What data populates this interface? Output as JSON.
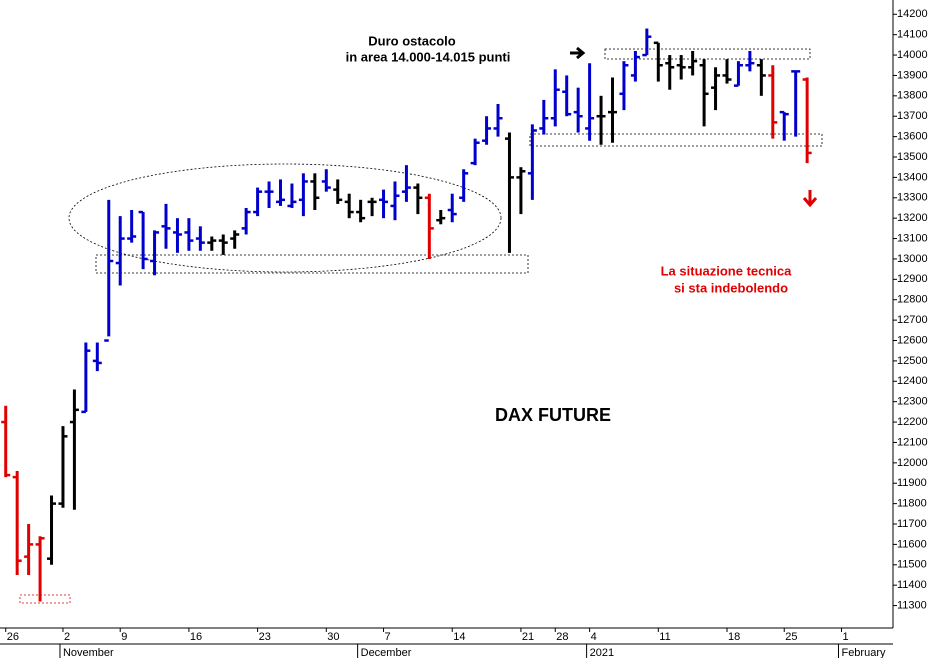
{
  "chart_data": {
    "type": "ohlc",
    "title": "DAX FUTURE",
    "annotations": [
      "Duro ostacolo",
      "in area 14.000-14.015 punti",
      "La situazione tecnica",
      "si sta indebolendo"
    ],
    "open": [
      12200,
      11930,
      11540,
      11600,
      11530,
      11800,
      12200,
      12250,
      12500,
      12600,
      12980,
      13100,
      13230,
      12990,
      13160,
      13130,
      13130,
      13100,
      13080,
      13090,
      13100,
      13150,
      13230,
      13330,
      13280,
      13260,
      13290,
      13380,
      13380,
      13340,
      13280,
      13230,
      13280,
      13290,
      13260,
      13330,
      13350,
      13300,
      13190,
      13240,
      13300,
      13470,
      13580,
      13640,
      13590,
      13400,
      13420,
      13640,
      13690,
      13820,
      13720,
      13640,
      13700,
      13720,
      13810,
      13900,
      14000,
      14060,
      13960,
      13950,
      13940,
      13950,
      13840,
      13900,
      13850,
      13950,
      13950,
      13900,
      13720,
      13920,
      13880
    ],
    "high": [
      12280,
      11960,
      11700,
      11640,
      11840,
      12180,
      12360,
      12590,
      12590,
      13290,
      13210,
      13240,
      13230,
      13140,
      13270,
      13200,
      13200,
      13160,
      13110,
      13120,
      13140,
      13250,
      13350,
      13380,
      13390,
      13370,
      13420,
      13420,
      13440,
      13390,
      13320,
      13290,
      13300,
      13340,
      13380,
      13460,
      13370,
      13320,
      13240,
      13320,
      13440,
      13590,
      13700,
      13760,
      13620,
      13450,
      13660,
      13780,
      13930,
      13900,
      13840,
      13960,
      13800,
      13890,
      13970,
      14020,
      14130,
      14060,
      14000,
      14000,
      14020,
      13980,
      13940,
      13980,
      13970,
      14020,
      13980,
      13950,
      13720,
      13920,
      13890
    ],
    "low": [
      11930,
      11450,
      11450,
      11320,
      11500,
      11780,
      11770,
      12250,
      12450,
      12620,
      12870,
      13080,
      12950,
      12920,
      13050,
      13030,
      13040,
      13040,
      13040,
      13020,
      13050,
      13120,
      13210,
      13250,
      13260,
      13250,
      13210,
      13240,
      13330,
      13270,
      13200,
      13180,
      13210,
      13200,
      13190,
      13280,
      13220,
      13000,
      13170,
      13180,
      13280,
      13460,
      13560,
      13600,
      13030,
      13220,
      13290,
      13610,
      13650,
      13700,
      13620,
      13580,
      13560,
      13570,
      13730,
      13870,
      14000,
      13870,
      13830,
      13880,
      13900,
      13650,
      13730,
      13860,
      13850,
      13920,
      13800,
      13590,
      13580,
      13600,
      13470
    ],
    "close": [
      11940,
      11520,
      11600,
      11630,
      11800,
      12130,
      12260,
      12550,
      12490,
      12990,
      13100,
      13110,
      13000,
      13130,
      13150,
      13120,
      13090,
      13080,
      13090,
      13080,
      13120,
      13230,
      13330,
      13330,
      13290,
      13280,
      13380,
      13300,
      13350,
      13290,
      13230,
      13200,
      13280,
      13280,
      13310,
      13350,
      13300,
      13150,
      13200,
      13220,
      13420,
      13570,
      13640,
      13690,
      13400,
      13430,
      13630,
      13690,
      13830,
      13710,
      13700,
      13690,
      13700,
      13720,
      13950,
      13990,
      14090,
      13950,
      13940,
      13940,
      13970,
      13810,
      13900,
      13880,
      13950,
      13960,
      13900,
      13670,
      13710,
      13920,
      13520
    ],
    "colors": [
      "#e00000",
      "#e00000",
      "#e00000",
      "#e00000",
      "#000000",
      "#000000",
      "#000000",
      "#0000cc",
      "#0000cc",
      "#0000cc",
      "#0000cc",
      "#0000cc",
      "#0000cc",
      "#0000cc",
      "#0000cc",
      "#0000cc",
      "#0000cc",
      "#0000cc",
      "#000000",
      "#000000",
      "#000000",
      "#0000cc",
      "#0000cc",
      "#0000cc",
      "#0000cc",
      "#0000cc",
      "#0000cc",
      "#000000",
      "#0000cc",
      "#000000",
      "#000000",
      "#000000",
      "#000000",
      "#0000cc",
      "#0000cc",
      "#0000cc",
      "#000000",
      "#e00000",
      "#000000",
      "#0000cc",
      "#0000cc",
      "#0000cc",
      "#0000cc",
      "#0000cc",
      "#000000",
      "#000000",
      "#0000cc",
      "#0000cc",
      "#0000cc",
      "#0000cc",
      "#0000cc",
      "#0000cc",
      "#000000",
      "#000000",
      "#0000cc",
      "#0000cc",
      "#0000cc",
      "#000000",
      "#000000",
      "#000000",
      "#000000",
      "#000000",
      "#000000",
      "#000000",
      "#0000cc",
      "#0000cc",
      "#000000",
      "#e00000",
      "#0000cc",
      "#0000cc",
      "#e00000"
    ],
    "xlim": [
      -0.5,
      77.5
    ],
    "xticks": [
      {
        "value": 0,
        "label": "26"
      },
      {
        "value": 5,
        "label": "2"
      },
      {
        "value": 10,
        "label": "9"
      },
      {
        "value": 16,
        "label": "16"
      },
      {
        "value": 22,
        "label": "23"
      },
      {
        "value": 28,
        "label": "30"
      },
      {
        "value": 33,
        "label": "7"
      },
      {
        "value": 39,
        "label": "14"
      },
      {
        "value": 45,
        "label": "21"
      },
      {
        "value": 48,
        "label": "28"
      },
      {
        "value": 51,
        "label": "4"
      },
      {
        "value": 57,
        "label": "11"
      },
      {
        "value": 63,
        "label": "18"
      },
      {
        "value": 68,
        "label": "25"
      },
      {
        "value": 73,
        "label": "1"
      }
    ],
    "month_ticks": [
      {
        "value": 5,
        "label": "November"
      },
      {
        "value": 31,
        "label": "December"
      },
      {
        "value": 51,
        "label": "2021"
      },
      {
        "value": 73,
        "label": "February"
      }
    ],
    "ylim": [
      11190,
      14270
    ],
    "yticks": [
      11300,
      11400,
      11500,
      11600,
      11700,
      11800,
      11900,
      12000,
      12100,
      12200,
      12300,
      12400,
      12500,
      12600,
      12700,
      12800,
      12900,
      13000,
      13100,
      13200,
      13300,
      13400,
      13500,
      13600,
      13700,
      13800,
      13900,
      14000,
      14100,
      14200
    ],
    "grid": false
  }
}
